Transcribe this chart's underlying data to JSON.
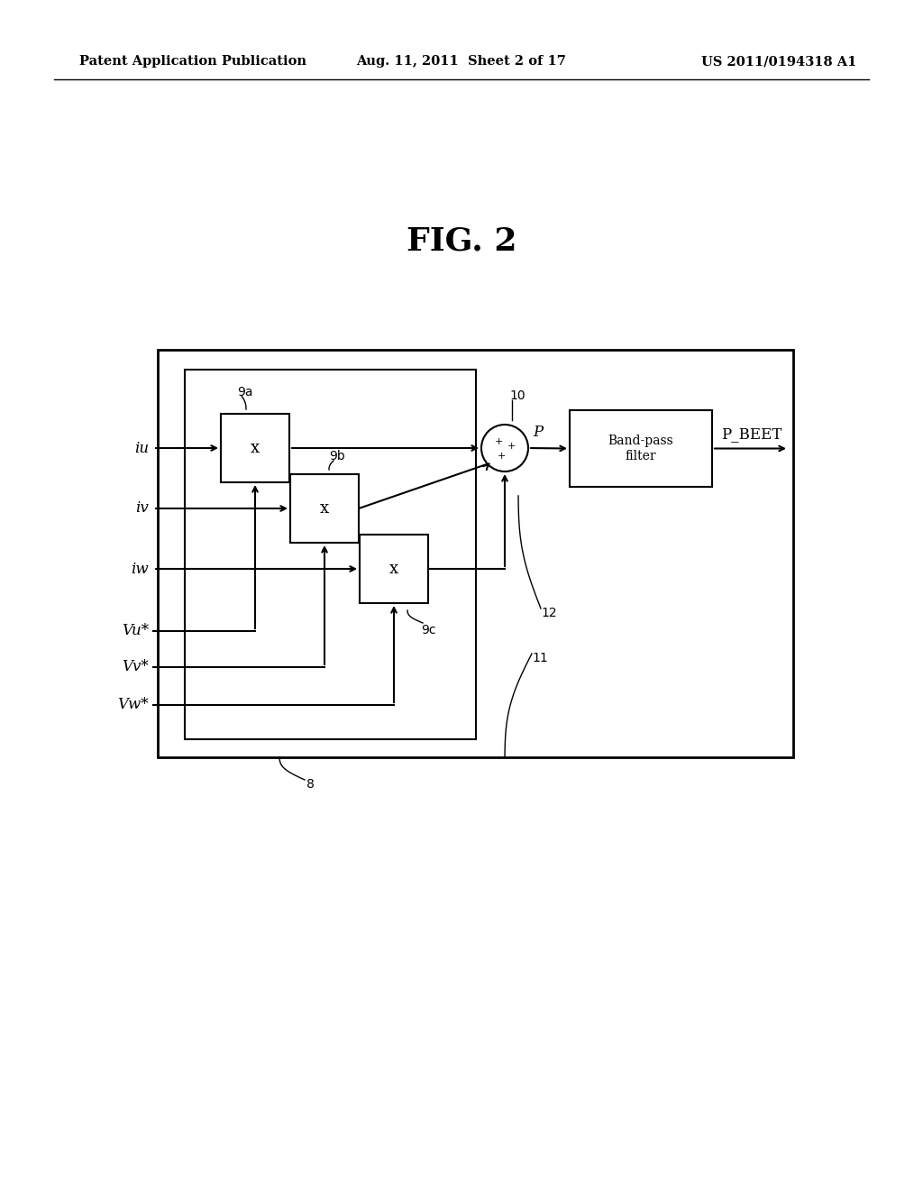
{
  "title": "FIG. 2",
  "header_left": "Patent Application Publication",
  "header_center": "Aug. 11, 2011  Sheet 2 of 17",
  "header_right": "US 2011/0194318 A1",
  "bg_color": "#ffffff",
  "line_color": "#000000",
  "fig_title_fontsize": 26,
  "header_fontsize": 10.5,
  "label_fontsize": 12,
  "small_label_fontsize": 10,
  "bandpass_label": "Band-pass\nfilter",
  "output_label": "P_BEET",
  "p_label": "P",
  "labels_9a": "9a",
  "labels_9b": "9b",
  "labels_10": "10",
  "labels_9c": "9c",
  "labels_11": "11",
  "labels_12": "12",
  "labels_8": "8"
}
